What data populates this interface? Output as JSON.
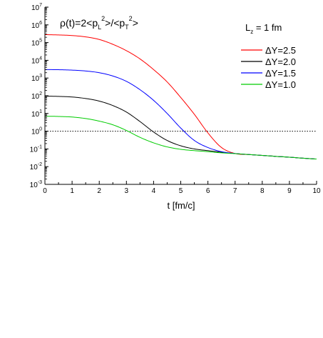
{
  "chart_data": {
    "type": "line",
    "title": "",
    "annotation": {
      "lead": "ρ(t)=2<p",
      "sub1": "L",
      "sup1": "2",
      "mid": ">/<p",
      "sub2": "T",
      "sup2": "2",
      "tail": ">"
    },
    "legend_title": {
      "main": "L",
      "sub": "z",
      "rest": " = 1 fm"
    },
    "legend_position": "top-right",
    "xlabel": "t [fm/c]",
    "ylabel": "",
    "xlim": [
      0,
      10
    ],
    "ylim_log10": [
      -3,
      7
    ],
    "yscale": "log",
    "x_ticks": [
      "0",
      "1",
      "2",
      "3",
      "4",
      "5",
      "6",
      "7",
      "8",
      "9",
      "10"
    ],
    "y_tick_exponents": [
      "-3",
      "-2",
      "-1",
      "0",
      "1",
      "2",
      "3",
      "4",
      "5",
      "6",
      "7"
    ],
    "reference_line": {
      "y": 1,
      "style": "dotted"
    },
    "x": [
      0,
      0.5,
      1,
      1.5,
      2,
      2.5,
      3,
      3.5,
      4,
      4.5,
      5,
      5.5,
      6,
      6.5,
      7,
      7.5,
      8,
      8.5,
      9,
      9.5,
      10
    ],
    "series": [
      {
        "name": "ΔY=2.5",
        "color": "#ff0000",
        "values": [
          280000.0,
          270000.0,
          250000.0,
          210000.0,
          150000.0,
          80000.0,
          35000.0,
          12000.0,
          3000,
          600,
          80,
          9,
          0.8,
          0.12,
          0.055,
          0.048,
          0.043,
          0.038,
          0.034,
          0.03,
          0.027
        ]
      },
      {
        "name": "ΔY=2.0",
        "color": "#000000",
        "values": [
          95,
          92,
          85,
          70,
          50,
          28,
          12,
          3.5,
          0.9,
          0.3,
          0.15,
          0.1,
          0.08,
          0.065,
          0.055,
          0.048,
          0.043,
          0.038,
          0.034,
          0.03,
          0.027
        ]
      },
      {
        "name": "ΔY=1.5",
        "color": "#0000ff",
        "values": [
          3000,
          2950,
          2800,
          2500,
          2000,
          1300,
          650,
          220,
          55,
          10,
          1.5,
          0.3,
          0.12,
          0.07,
          0.055,
          0.048,
          0.043,
          0.038,
          0.034,
          0.03,
          0.027
        ]
      },
      {
        "name": "ΔY=1.0",
        "color": "#00cc00",
        "values": [
          7,
          6.8,
          6.3,
          5.2,
          3.7,
          2.3,
          1.1,
          0.45,
          0.22,
          0.13,
          0.095,
          0.08,
          0.07,
          0.06,
          0.054,
          0.048,
          0.043,
          0.038,
          0.034,
          0.03,
          0.027
        ]
      }
    ]
  }
}
